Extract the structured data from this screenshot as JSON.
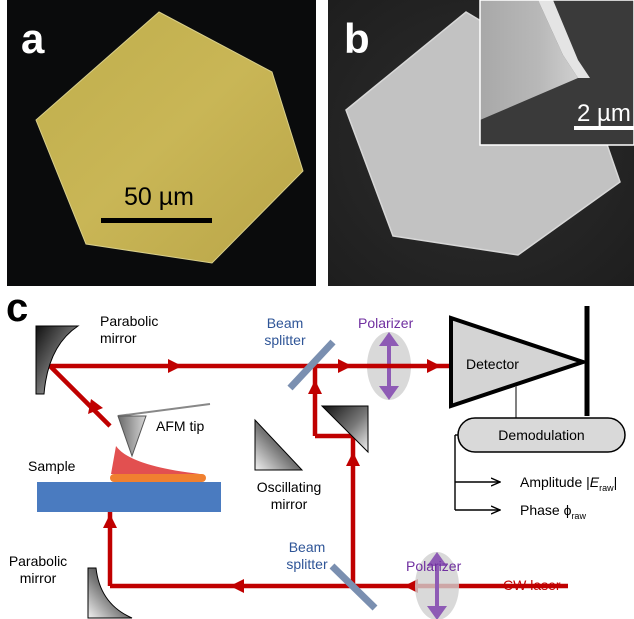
{
  "panel_a": {
    "letter": "a",
    "scale_label": "50 µm"
  },
  "panel_b": {
    "letter": "b",
    "scale_label": "2 µm"
  },
  "panel_c": {
    "letter": "c",
    "parabolic_mirror_top": "Parabolic\nmirror",
    "beam_splitter_top": "Beam\nsplitter",
    "polarizer_top": "Polarizer",
    "detector": "Detector",
    "demodulation": "Demodulation",
    "amplitude_prefix": "Amplitude |",
    "amplitude_var": "E",
    "amplitude_sub": "raw",
    "amplitude_suffix": "|",
    "phase_prefix": "Phase ϕ",
    "phase_sub": "raw",
    "afm_tip": "AFM tip",
    "sample": "Sample",
    "oscillating_mirror": "Oscillating\nmirror",
    "parabolic_mirror_bottom": "Parabolic\nmirror",
    "beam_splitter_bottom": "Beam\nsplitter",
    "polarizer_bottom": "Polarizer",
    "cw_laser": "CW laser"
  },
  "colors": {
    "beam": "#c00000",
    "beam_splitter": "#7a8fb0",
    "polarizer": "#8e5bb5",
    "sample": "#4a7bc0",
    "flake": "#f08030",
    "near_field": "#e25050",
    "gold_flake": "#c8b24a"
  }
}
